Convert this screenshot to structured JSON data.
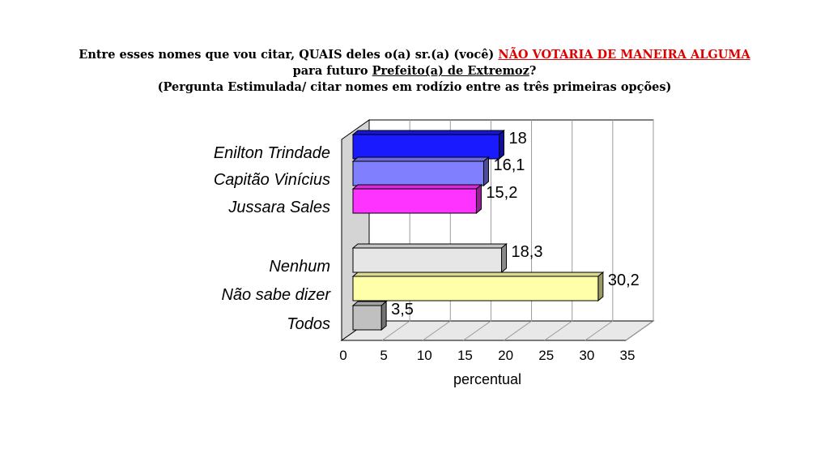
{
  "title": {
    "line1_prefix": "Entre esses nomes que vou citar, QUAIS deles o(a) sr.(a) (você) ",
    "line1_highlight": "NÃO VOTARIA DE MANEIRA ALGUMA",
    "line2_prefix": "para futuro ",
    "line2_underlined": "Prefeito(a) de Extremoz",
    "line2_suffix": "?",
    "line3": "(Pergunta Estimulada/ citar nomes em rodízio entre as três primeiras opções)",
    "highlight_color": "#e00000"
  },
  "chart_data": {
    "type": "bar",
    "orientation": "horizontal",
    "style": "3d",
    "categories": [
      "Enilton Trindade",
      "Capitão Vinícius",
      "Jussara Sales",
      "Nenhum",
      "Não sabe dizer",
      "Todos"
    ],
    "values": [
      18,
      16.1,
      15.2,
      18.3,
      30.2,
      3.5
    ],
    "value_labels": [
      "18",
      "16,1",
      "15,2",
      "18,3",
      "30,2",
      "3,5"
    ],
    "colors": [
      "#1a1aff",
      "#8080ff",
      "#ff33ff",
      "#e6e6e6",
      "#ffffaa",
      "#c0c0c0"
    ],
    "xlabel": "percentual",
    "xlim": [
      0,
      35
    ],
    "xticks": [
      "0",
      "5",
      "10",
      "15",
      "20",
      "25",
      "30",
      "35"
    ],
    "grid": true
  }
}
